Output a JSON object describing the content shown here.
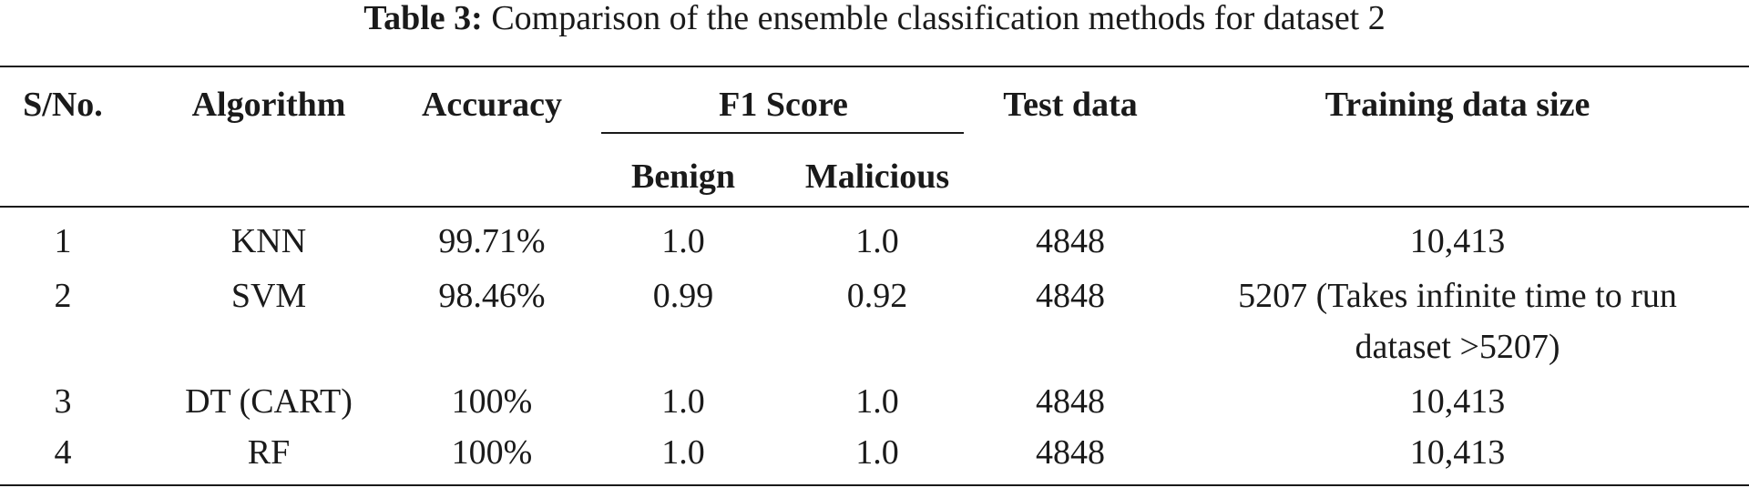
{
  "caption": {
    "label": "Table 3:",
    "text": "Comparison of the ensemble classification methods for dataset 2"
  },
  "table": {
    "headers": {
      "sno": "S/No.",
      "algorithm": "Algorithm",
      "accuracy": "Accuracy",
      "f1_group": "F1 Score",
      "benign": "Benign",
      "malicious": "Malicious",
      "test_data": "Test data",
      "training_size": "Training data size"
    },
    "rows": [
      {
        "sno": "1",
        "algorithm": "KNN",
        "accuracy": "99.71%",
        "benign": "1.0",
        "malicious": "1.0",
        "test_data": "4848",
        "training_size": "10,413"
      },
      {
        "sno": "2",
        "algorithm": "SVM",
        "accuracy": "98.46%",
        "benign": "0.99",
        "malicious": "0.92",
        "test_data": "4848",
        "training_size": "5207 (Takes infinite time to run",
        "training_size_cont": "dataset >5207)"
      },
      {
        "sno": "3",
        "algorithm": "DT (CART)",
        "accuracy": "100%",
        "benign": "1.0",
        "malicious": "1.0",
        "test_data": "4848",
        "training_size": "10,413"
      },
      {
        "sno": "4",
        "algorithm": "RF",
        "accuracy": "100%",
        "benign": "1.0",
        "malicious": "1.0",
        "test_data": "4848",
        "training_size": "10,413"
      }
    ]
  }
}
